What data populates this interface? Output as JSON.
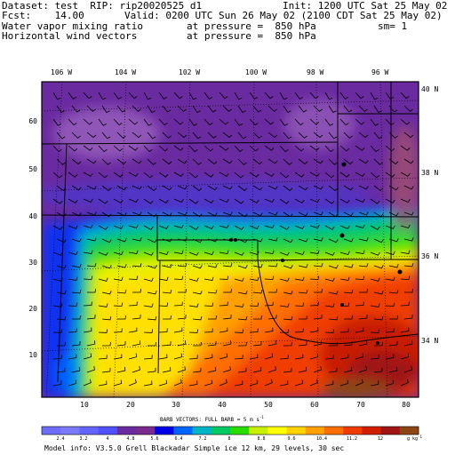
{
  "header": {
    "dataset_line": "Dataset: test  RIP: rip20020525 d1",
    "init_line": "Init: 1200 UTC Sat 25 May 02",
    "fcst_line": "Fcst:    14.00",
    "valid_line": "Valid: 0200 UTC Sun 26 May 02 (2100 CDT Sat 25 May 02)",
    "field_1": "Water vapor mixing ratio",
    "field_1_level": "at pressure =  850 hPa",
    "field_1_sm": "sm= 1",
    "field_2": "Horizontal wind vectors",
    "field_2_level": "at pressure =  850 hPa"
  },
  "map": {
    "top_lon_labels": [
      "106 W",
      "104 W",
      "102 W",
      "100 W",
      "98 W",
      "96 W"
    ],
    "right_lat_labels": [
      "40 N",
      "38 N",
      "36 N",
      "34 N"
    ],
    "left_grid_labels": [
      "60",
      "50",
      "40",
      "30",
      "20",
      "10"
    ],
    "bottom_grid_labels": [
      "10",
      "20",
      "30",
      "40",
      "50",
      "60",
      "70",
      "80"
    ]
  },
  "colorbar": {
    "title": "BARB VECTORS:  FULL BARB = 5 m s",
    "title_sup": "-1",
    "tick_labels": [
      "2.4",
      "3.2",
      "4",
      "4.8",
      "5.6",
      "6.4",
      "7.2",
      "8",
      "8.8",
      "9.6",
      "10.4",
      "11.2",
      "12"
    ],
    "units": "g kg",
    "units_sup": "-1",
    "colors": [
      "#6e6efa",
      "#7a7afa",
      "#6464ff",
      "#5050ff",
      "#6a2aa0",
      "#7a2a8e",
      "#0000e6",
      "#0064ff",
      "#00b4c8",
      "#00c864",
      "#28dc00",
      "#c8f000",
      "#ffff00",
      "#ffd200",
      "#ffa000",
      "#ff6e00",
      "#f03c00",
      "#d21e00",
      "#a01414",
      "#8c4614"
    ]
  },
  "footer": {
    "model_info": "Model info: V3.5.0   Grell    Blackadar  Simple ice    12 km,  29 levels,    30 sec"
  }
}
